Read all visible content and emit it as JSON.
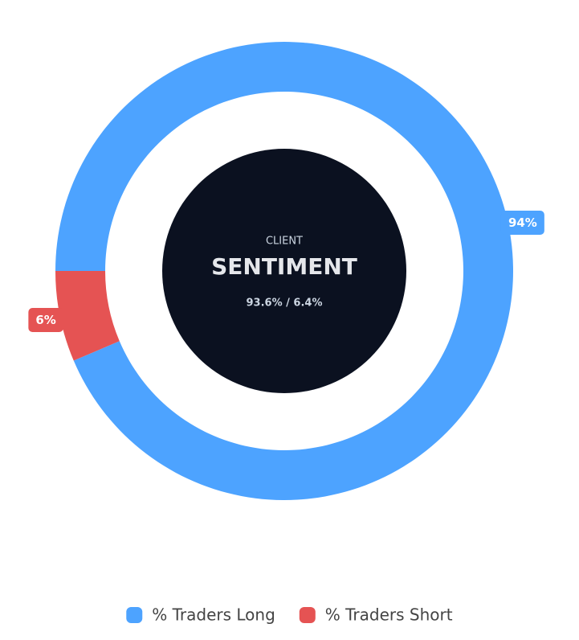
{
  "chart_data": {
    "type": "donut",
    "center_text": {
      "top": "CLIENT",
      "main": "SENTIMENT",
      "sub": "93.6% / 6.4%"
    },
    "categories": [
      "% Traders Long",
      "% Traders Short"
    ],
    "values": [
      93.6,
      6.4
    ],
    "value_labels": [
      "94%",
      "6%"
    ],
    "colors": [
      "#4da3ff",
      "#e55353"
    ],
    "legend": "bottom"
  }
}
